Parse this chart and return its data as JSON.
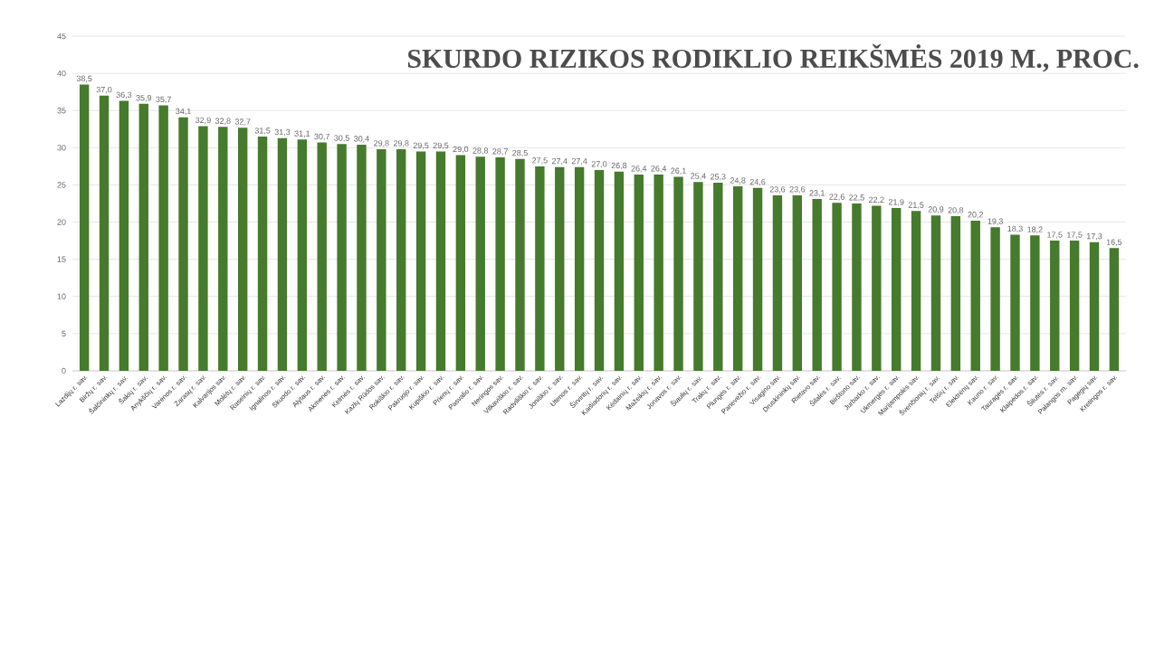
{
  "chart_data": {
    "type": "bar",
    "title": "SKURDO RIZIKOS RODIKLIO REIKŠMĖS 2019 M., PROC.",
    "categories": [
      "Lazdijų r. sav.",
      "Biržų r. sav.",
      "Šalčininkų r. sav.",
      "Šakių r. sav.",
      "Anykščių r. sav.",
      "Varėnos r. sav.",
      "Zarasų r. sav.",
      "Kalvarijos sav.",
      "Molėtų r. sav.",
      "Raseinių r. sav.",
      "Ignalinos r. sav.",
      "Skuodo r. sav.",
      "Alytaus r. sav.",
      "Akmenės r. sav.",
      "Kelmės r. sav.",
      "Kazlų Rūdos sav.",
      "Rokiškio r. sav.",
      "Pakruojo r. sav.",
      "Kupiškio r. sav.",
      "Prienų r. sav.",
      "Pasvalio r. sav.",
      "Neringos sav.",
      "Vilkaviškio r. sav.",
      "Radviliškio r. sav.",
      "Joniškio r. sav.",
      "Utenos r. sav.",
      "Širvintų r. sav.",
      "Kaišiadorių r. sav.",
      "Kėdainių r. sav.",
      "Mažeikių r. sav.",
      "Jonavos r. sav.",
      "Šiaulių r. sav.",
      "Trakų r. sav.",
      "Plungės r. sav.",
      "Panevėžio r. sav.",
      "Visagino sav.",
      "Druskininkų sav.",
      "Rietavo sav.",
      "Šilalės r. sav.",
      "Birštono sav.",
      "Jurbarko r. sav.",
      "Ukmergės r. sav.",
      "Marijampolės sav.",
      "Švenčionių r. sav.",
      "Telšių r. sav.",
      "Elektrėnų sav.",
      "Kauno r. sav.",
      "Tauragės r. sav.",
      "Klaipėdos r. sav.",
      "Šilutės r. sav.",
      "Palangos m. sav.",
      "Pagėgių sav.",
      "Kretingos r. sav."
    ],
    "values": [
      38.5,
      37.0,
      36.3,
      35.9,
      35.7,
      34.1,
      32.9,
      32.8,
      32.7,
      31.5,
      31.3,
      31.1,
      30.7,
      30.5,
      30.4,
      29.8,
      29.8,
      29.5,
      29.5,
      29.0,
      28.8,
      28.7,
      28.5,
      27.5,
      27.4,
      27.4,
      27.0,
      26.8,
      26.4,
      26.4,
      26.1,
      25.4,
      25.3,
      24.8,
      24.6,
      23.6,
      23.6,
      23.1,
      22.6,
      22.5,
      22.2,
      21.9,
      21.5,
      20.9,
      20.8,
      20.2,
      19.3,
      18.3,
      18.2,
      17.5,
      17.5,
      17.3,
      16.5
    ],
    "value_labels": [
      "38,5",
      "37,0",
      "36,3",
      "35,9",
      "35,7",
      "34,1",
      "32,9",
      "32,8",
      "32,7",
      "31,5",
      "31,3",
      "31,1",
      "30,7",
      "30,5",
      "30,4",
      "29,8",
      "29,8",
      "29,5",
      "29,5",
      "29,0",
      "28,8",
      "28,7",
      "28,5",
      "27,5",
      "27,4",
      "27,4",
      "27,0",
      "26,8",
      "26,4",
      "26,4",
      "26,1",
      "25,4",
      "25,3",
      "24,8",
      "24,6",
      "23,6",
      "23,6",
      "23,1",
      "22,6",
      "22,5",
      "22,2",
      "21,9",
      "21,5",
      "20,9",
      "20,8",
      "20,2",
      "19,3",
      "18,3",
      "18,2",
      "17,5",
      "17,5",
      "17,3",
      "16,5"
    ],
    "color": "#467a2c",
    "ylim": [
      0,
      45
    ],
    "yticks": [
      0,
      5,
      10,
      15,
      20,
      25,
      30,
      35,
      40,
      45
    ],
    "grid": "y"
  }
}
